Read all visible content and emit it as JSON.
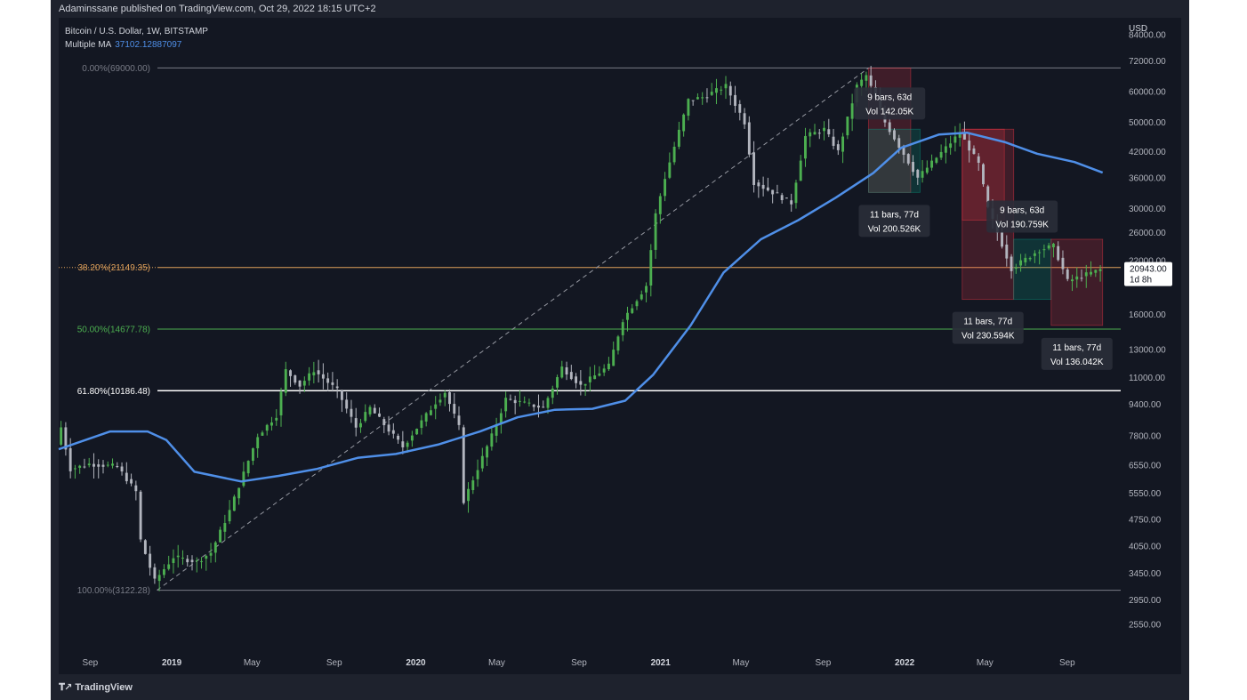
{
  "header": {
    "published": "Adaminssane published on TradingView.com, Oct 29, 2022 18:15 UTC+2"
  },
  "symbol": {
    "title": "Bitcoin / U.S. Dollar, 1W, BITSTAMP",
    "indicator_label": "Multiple MA",
    "indicator_value": "37102.12887097"
  },
  "currency": "USD",
  "footer": {
    "brand": "TradingView"
  },
  "colors": {
    "background": "#131722",
    "up": "#4caf50",
    "down": "#b2b5be",
    "ma": "#4f8fe8",
    "fib_382": "#e0a15a",
    "fib_50": "#4caf50",
    "fib_618": "#ffffff",
    "range_red": "#f23645",
    "range_green": "#089981"
  },
  "chart_data": {
    "type": "candlestick",
    "title": "Bitcoin / U.S. Dollar, 1W, BITSTAMP",
    "scale": "log",
    "ylim": [
      2200,
      90000
    ],
    "y_ticks": [
      {
        "value": 84000,
        "label": "84000.00"
      },
      {
        "value": 72000,
        "label": "72000.00"
      },
      {
        "value": 60000,
        "label": "60000.00"
      },
      {
        "value": 50000,
        "label": "50000.00"
      },
      {
        "value": 42000,
        "label": "42000.00"
      },
      {
        "value": 36000,
        "label": "36000.00"
      },
      {
        "value": 30000,
        "label": "30000.00"
      },
      {
        "value": 26000,
        "label": "26000.00"
      },
      {
        "value": 22000,
        "label": "22000.00"
      },
      {
        "value": 16000,
        "label": "16000.00"
      },
      {
        "value": 13000,
        "label": "13000.00"
      },
      {
        "value": 11000,
        "label": "11000.00"
      },
      {
        "value": 9400,
        "label": "9400.00"
      },
      {
        "value": 7800,
        "label": "7800.00"
      },
      {
        "value": 6550,
        "label": "6550.00"
      },
      {
        "value": 5550,
        "label": "5550.00"
      },
      {
        "value": 4750,
        "label": "4750.00"
      },
      {
        "value": 4050,
        "label": "4050.00"
      },
      {
        "value": 3450,
        "label": "3450.00"
      },
      {
        "value": 2950,
        "label": "2950.00"
      },
      {
        "value": 2550,
        "label": "2550.00"
      }
    ],
    "x_range": [
      "2018-07-16",
      "2022-11-20"
    ],
    "x_ticks": [
      {
        "date": "2018-09-01",
        "label": "Sep",
        "year": false
      },
      {
        "date": "2019-01-01",
        "label": "2019",
        "year": true
      },
      {
        "date": "2019-05-01",
        "label": "May",
        "year": false
      },
      {
        "date": "2019-09-01",
        "label": "Sep",
        "year": false
      },
      {
        "date": "2020-01-01",
        "label": "2020",
        "year": true
      },
      {
        "date": "2020-05-01",
        "label": "May",
        "year": false
      },
      {
        "date": "2020-09-01",
        "label": "Sep",
        "year": false
      },
      {
        "date": "2021-01-01",
        "label": "2021",
        "year": true
      },
      {
        "date": "2021-05-01",
        "label": "May",
        "year": false
      },
      {
        "date": "2021-09-01",
        "label": "Sep",
        "year": false
      },
      {
        "date": "2022-01-01",
        "label": "2022",
        "year": true
      },
      {
        "date": "2022-05-01",
        "label": "May",
        "year": false
      },
      {
        "date": "2022-09-01",
        "label": "Sep",
        "year": false
      }
    ],
    "price_path": [
      [
        "2018-07-16",
        7400
      ],
      [
        "2018-07-23",
        8200
      ],
      [
        "2018-08-06",
        6400
      ],
      [
        "2018-09-03",
        6600
      ],
      [
        "2018-10-15",
        6500
      ],
      [
        "2018-11-12",
        5600
      ],
      [
        "2018-11-19",
        4200
      ],
      [
        "2018-12-10",
        3300
      ],
      [
        "2019-01-07",
        3800
      ],
      [
        "2019-02-11",
        3700
      ],
      [
        "2019-03-04",
        3900
      ],
      [
        "2019-04-01",
        5000
      ],
      [
        "2019-05-13",
        7800
      ],
      [
        "2019-06-10",
        8800
      ],
      [
        "2019-06-24",
        11500
      ],
      [
        "2019-07-15",
        10500
      ],
      [
        "2019-08-05",
        11500
      ],
      [
        "2019-09-09",
        10200
      ],
      [
        "2019-10-07",
        8200
      ],
      [
        "2019-10-28",
        9200
      ],
      [
        "2019-12-16",
        7300
      ],
      [
        "2020-02-03",
        9500
      ],
      [
        "2020-02-17",
        10100
      ],
      [
        "2020-03-09",
        8200
      ],
      [
        "2020-03-16",
        5300
      ],
      [
        "2020-04-27",
        7800
      ],
      [
        "2020-05-18",
        9700
      ],
      [
        "2020-07-13",
        9200
      ],
      [
        "2020-08-10",
        11700
      ],
      [
        "2020-09-07",
        10500
      ],
      [
        "2020-10-19",
        11800
      ],
      [
        "2020-11-09",
        15500
      ],
      [
        "2020-12-14",
        19000
      ],
      [
        "2020-12-28",
        29000
      ],
      [
        "2021-01-11",
        36000
      ],
      [
        "2021-02-15",
        57000
      ],
      [
        "2021-03-08",
        58000
      ],
      [
        "2021-04-12",
        62000
      ],
      [
        "2021-05-10",
        50000
      ],
      [
        "2021-05-24",
        35000
      ],
      [
        "2021-06-21",
        33000
      ],
      [
        "2021-07-19",
        31000
      ],
      [
        "2021-08-09",
        46000
      ],
      [
        "2021-09-06",
        48000
      ],
      [
        "2021-09-27",
        42000
      ],
      [
        "2021-10-25",
        62000
      ],
      [
        "2021-11-08",
        66000
      ],
      [
        "2021-12-06",
        50000
      ],
      [
        "2022-01-24",
        36000
      ],
      [
        "2022-03-28",
        47000
      ],
      [
        "2022-04-25",
        39000
      ],
      [
        "2022-05-09",
        30000
      ],
      [
        "2022-06-13",
        21000
      ],
      [
        "2022-07-25",
        23500
      ],
      [
        "2022-08-15",
        24000
      ],
      [
        "2022-09-05",
        19500
      ],
      [
        "2022-10-24",
        20900
      ]
    ],
    "series": [
      {
        "name": "Multiple MA",
        "values": [
          [
            "2018-07-16",
            7200
          ],
          [
            "2018-10-01",
            8000
          ],
          [
            "2018-11-26",
            8000
          ],
          [
            "2018-12-24",
            7600
          ],
          [
            "2019-02-04",
            6300
          ],
          [
            "2019-04-15",
            5950
          ],
          [
            "2019-06-10",
            6150
          ],
          [
            "2019-08-05",
            6400
          ],
          [
            "2019-10-07",
            6850
          ],
          [
            "2019-12-02",
            7000
          ],
          [
            "2020-02-03",
            7400
          ],
          [
            "2020-04-06",
            8000
          ],
          [
            "2020-06-01",
            8700
          ],
          [
            "2020-07-27",
            9100
          ],
          [
            "2020-09-21",
            9150
          ],
          [
            "2020-11-09",
            9600
          ],
          [
            "2020-12-21",
            11200
          ],
          [
            "2021-02-15",
            15000
          ],
          [
            "2021-04-05",
            20500
          ],
          [
            "2021-05-31",
            25000
          ],
          [
            "2021-07-26",
            28000
          ],
          [
            "2021-09-20",
            32000
          ],
          [
            "2021-11-15",
            37000
          ],
          [
            "2021-12-27",
            43000
          ],
          [
            "2022-02-21",
            46500
          ],
          [
            "2022-04-04",
            47000
          ],
          [
            "2022-05-30",
            44500
          ],
          [
            "2022-07-18",
            41500
          ],
          [
            "2022-09-12",
            39500
          ],
          [
            "2022-10-24",
            37102
          ]
        ]
      }
    ],
    "fib": {
      "anchor_low": {
        "date": "2018-12-10",
        "price": 3122.28
      },
      "anchor_high": {
        "date": "2021-11-08",
        "price": 69000
      },
      "levels": [
        {
          "label": "0.00%(69000.00)",
          "price": 69000,
          "color": "#787b86"
        },
        {
          "label": "38.20%(21149.35)",
          "price": 21149.35,
          "color": "#e0a15a"
        },
        {
          "label": "50.00%(14677.78)",
          "price": 14677.78,
          "color": "#4caf50"
        },
        {
          "label": "61.80%(10186.48)",
          "price": 10186.48,
          "color": "#ffffff"
        },
        {
          "label": "100.00%(3122.28)",
          "price": 3122.28,
          "color": "#787b86"
        }
      ]
    },
    "ranges": [
      {
        "start": "2021-11-08",
        "end": "2022-01-10",
        "high": 69000,
        "low": 33000,
        "color": "red",
        "label_lines": [
          "9 bars, 63d",
          "Vol 142.05K"
        ],
        "label_pos": "above"
      },
      {
        "start": "2021-11-08",
        "end": "2022-01-24",
        "high": 48000,
        "low": 33000,
        "color": "green",
        "label_lines": [
          "11 bars, 77d",
          "Vol 200.526K"
        ],
        "label_pos": "below"
      },
      {
        "start": "2022-03-28",
        "end": "2022-05-30",
        "high": 48000,
        "low": 28000,
        "color": "red",
        "label_lines": [
          "9 bars, 63d",
          "Vol 190.759K"
        ],
        "label_pos": "mid"
      },
      {
        "start": "2022-03-28",
        "end": "2022-06-13",
        "high": 48000,
        "low": 17500,
        "color": "red",
        "label_lines": [
          "11 bars, 77d",
          "Vol 230.594K"
        ],
        "label_pos": "below"
      },
      {
        "start": "2022-06-13",
        "end": "2022-08-08",
        "high": 25000,
        "low": 17500,
        "color": "green",
        "label_lines": [],
        "label_pos": "none"
      },
      {
        "start": "2022-08-08",
        "end": "2022-10-24",
        "high": 25000,
        "low": 15000,
        "color": "red",
        "label_lines": [
          "11 bars, 77d",
          "Vol 136.042K"
        ],
        "label_pos": "below"
      }
    ],
    "last_price": {
      "value": 20943,
      "label": "20943.00",
      "countdown": "1d 8h"
    }
  }
}
